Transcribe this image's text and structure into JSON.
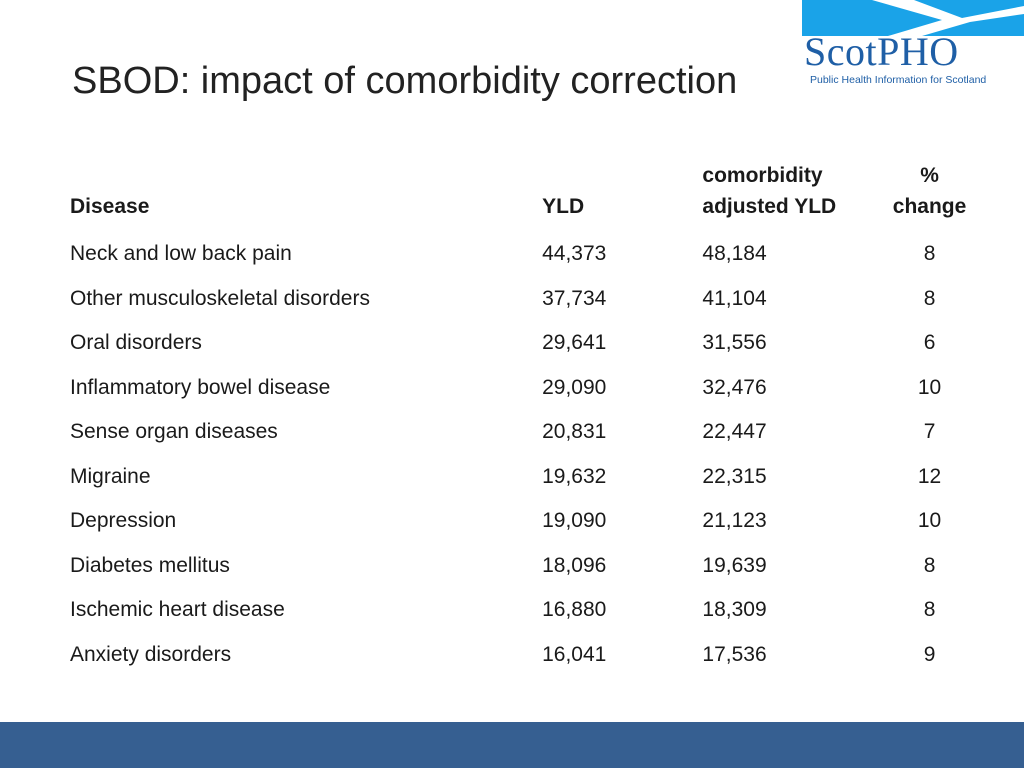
{
  "slide": {
    "title": "SBOD: impact of comorbidity correction"
  },
  "logo": {
    "name": "ScotPHO",
    "tagline": "Public Health Information for Scotland",
    "color": "#1f5fa6",
    "flag_color": "#1aa3e8"
  },
  "table": {
    "headers": {
      "disease": "Disease",
      "yld": "YLD",
      "adjusted_line1": "comorbidity",
      "adjusted_line2": "adjusted YLD",
      "change_line1": "%",
      "change_line2": "change"
    },
    "rows": [
      {
        "disease": "Neck and low back pain",
        "yld": "44,373",
        "adjusted": "48,184",
        "change": "8"
      },
      {
        "disease": "Other musculoskeletal disorders",
        "yld": "37,734",
        "adjusted": "41,104",
        "change": "8"
      },
      {
        "disease": "Oral disorders",
        "yld": "29,641",
        "adjusted": "31,556",
        "change": "6"
      },
      {
        "disease": "Inflammatory bowel disease",
        "yld": "29,090",
        "adjusted": "32,476",
        "change": "10"
      },
      {
        "disease": "Sense organ diseases",
        "yld": "20,831",
        "adjusted": "22,447",
        "change": "7"
      },
      {
        "disease": "Migraine",
        "yld": "19,632",
        "adjusted": "22,315",
        "change": "12"
      },
      {
        "disease": "Depression",
        "yld": "19,090",
        "adjusted": "21,123",
        "change": "10"
      },
      {
        "disease": "Diabetes mellitus",
        "yld": "18,096",
        "adjusted": "19,639",
        "change": "8"
      },
      {
        "disease": "Ischemic heart disease",
        "yld": "16,880",
        "adjusted": "18,309",
        "change": "8"
      },
      {
        "disease": "Anxiety disorders",
        "yld": "16,041",
        "adjusted": "17,536",
        "change": "9"
      }
    ]
  },
  "footer": {
    "bar_color": "#365f91"
  }
}
